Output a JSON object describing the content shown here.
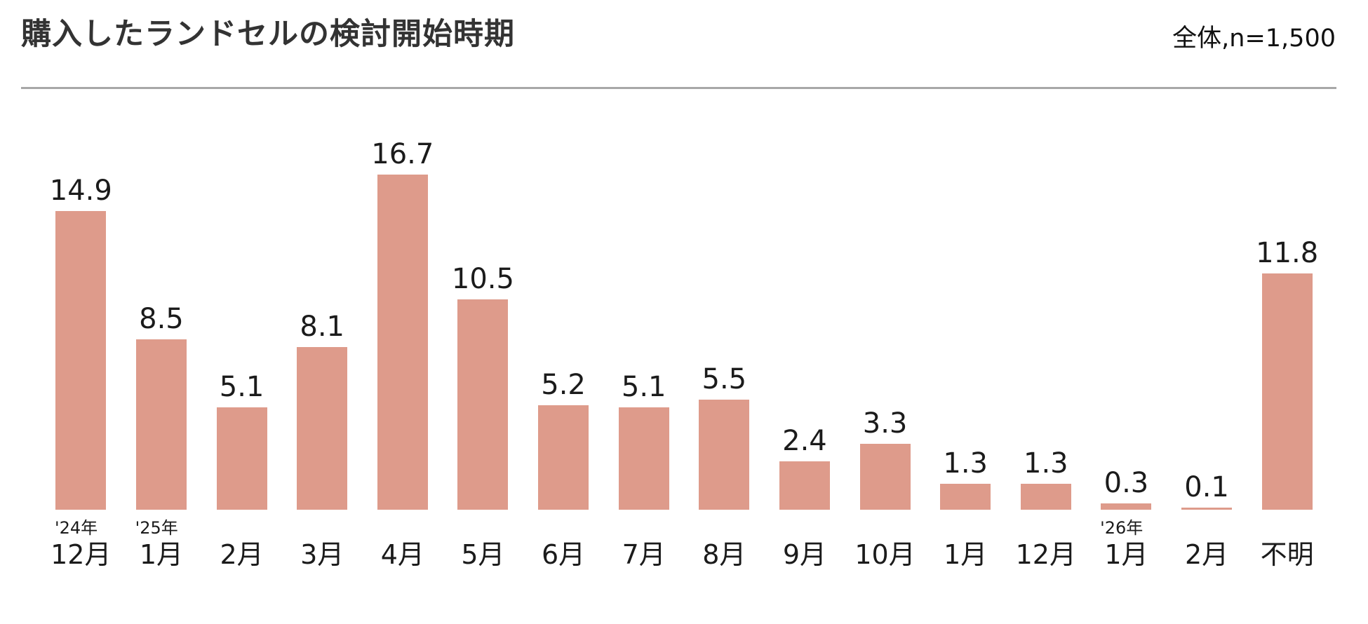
{
  "header": {
    "title": "購入したランドセルの検討開始時期",
    "sample_note": "全体,n=1,500"
  },
  "chart_data": {
    "type": "bar",
    "title": "購入したランドセルの検討開始時期",
    "sample_note": "全体,n=1,500",
    "categories": [
      "12月",
      "1月",
      "2月",
      "3月",
      "4月",
      "5月",
      "6月",
      "7月",
      "8月",
      "9月",
      "10月",
      "1月",
      "12月",
      "1月",
      "2月",
      "不明"
    ],
    "year_markers": [
      "'24年",
      "'25年",
      "",
      "",
      "",
      "",
      "",
      "",
      "",
      "",
      "",
      "",
      "",
      "'26年",
      "",
      ""
    ],
    "values": [
      14.9,
      8.5,
      5.1,
      8.1,
      16.7,
      10.5,
      5.2,
      5.1,
      5.5,
      2.4,
      3.3,
      1.3,
      1.3,
      0.3,
      0.1,
      11.8
    ],
    "value_labels": [
      "14.9",
      "8.5",
      "5.1",
      "8.1",
      "16.7",
      "10.5",
      "5.2",
      "5.1",
      "5.5",
      "2.4",
      "3.3",
      "1.3",
      "1.3",
      "0.3",
      "0.1",
      "11.8"
    ],
    "bar_color": "#de9b8b",
    "text_color": "#1b1b1b",
    "divider_color": "#a8a8a8",
    "ylim": [
      0,
      18
    ],
    "grid": false,
    "legend": false,
    "data_labels": "above-bars",
    "orientation": "vertical"
  }
}
